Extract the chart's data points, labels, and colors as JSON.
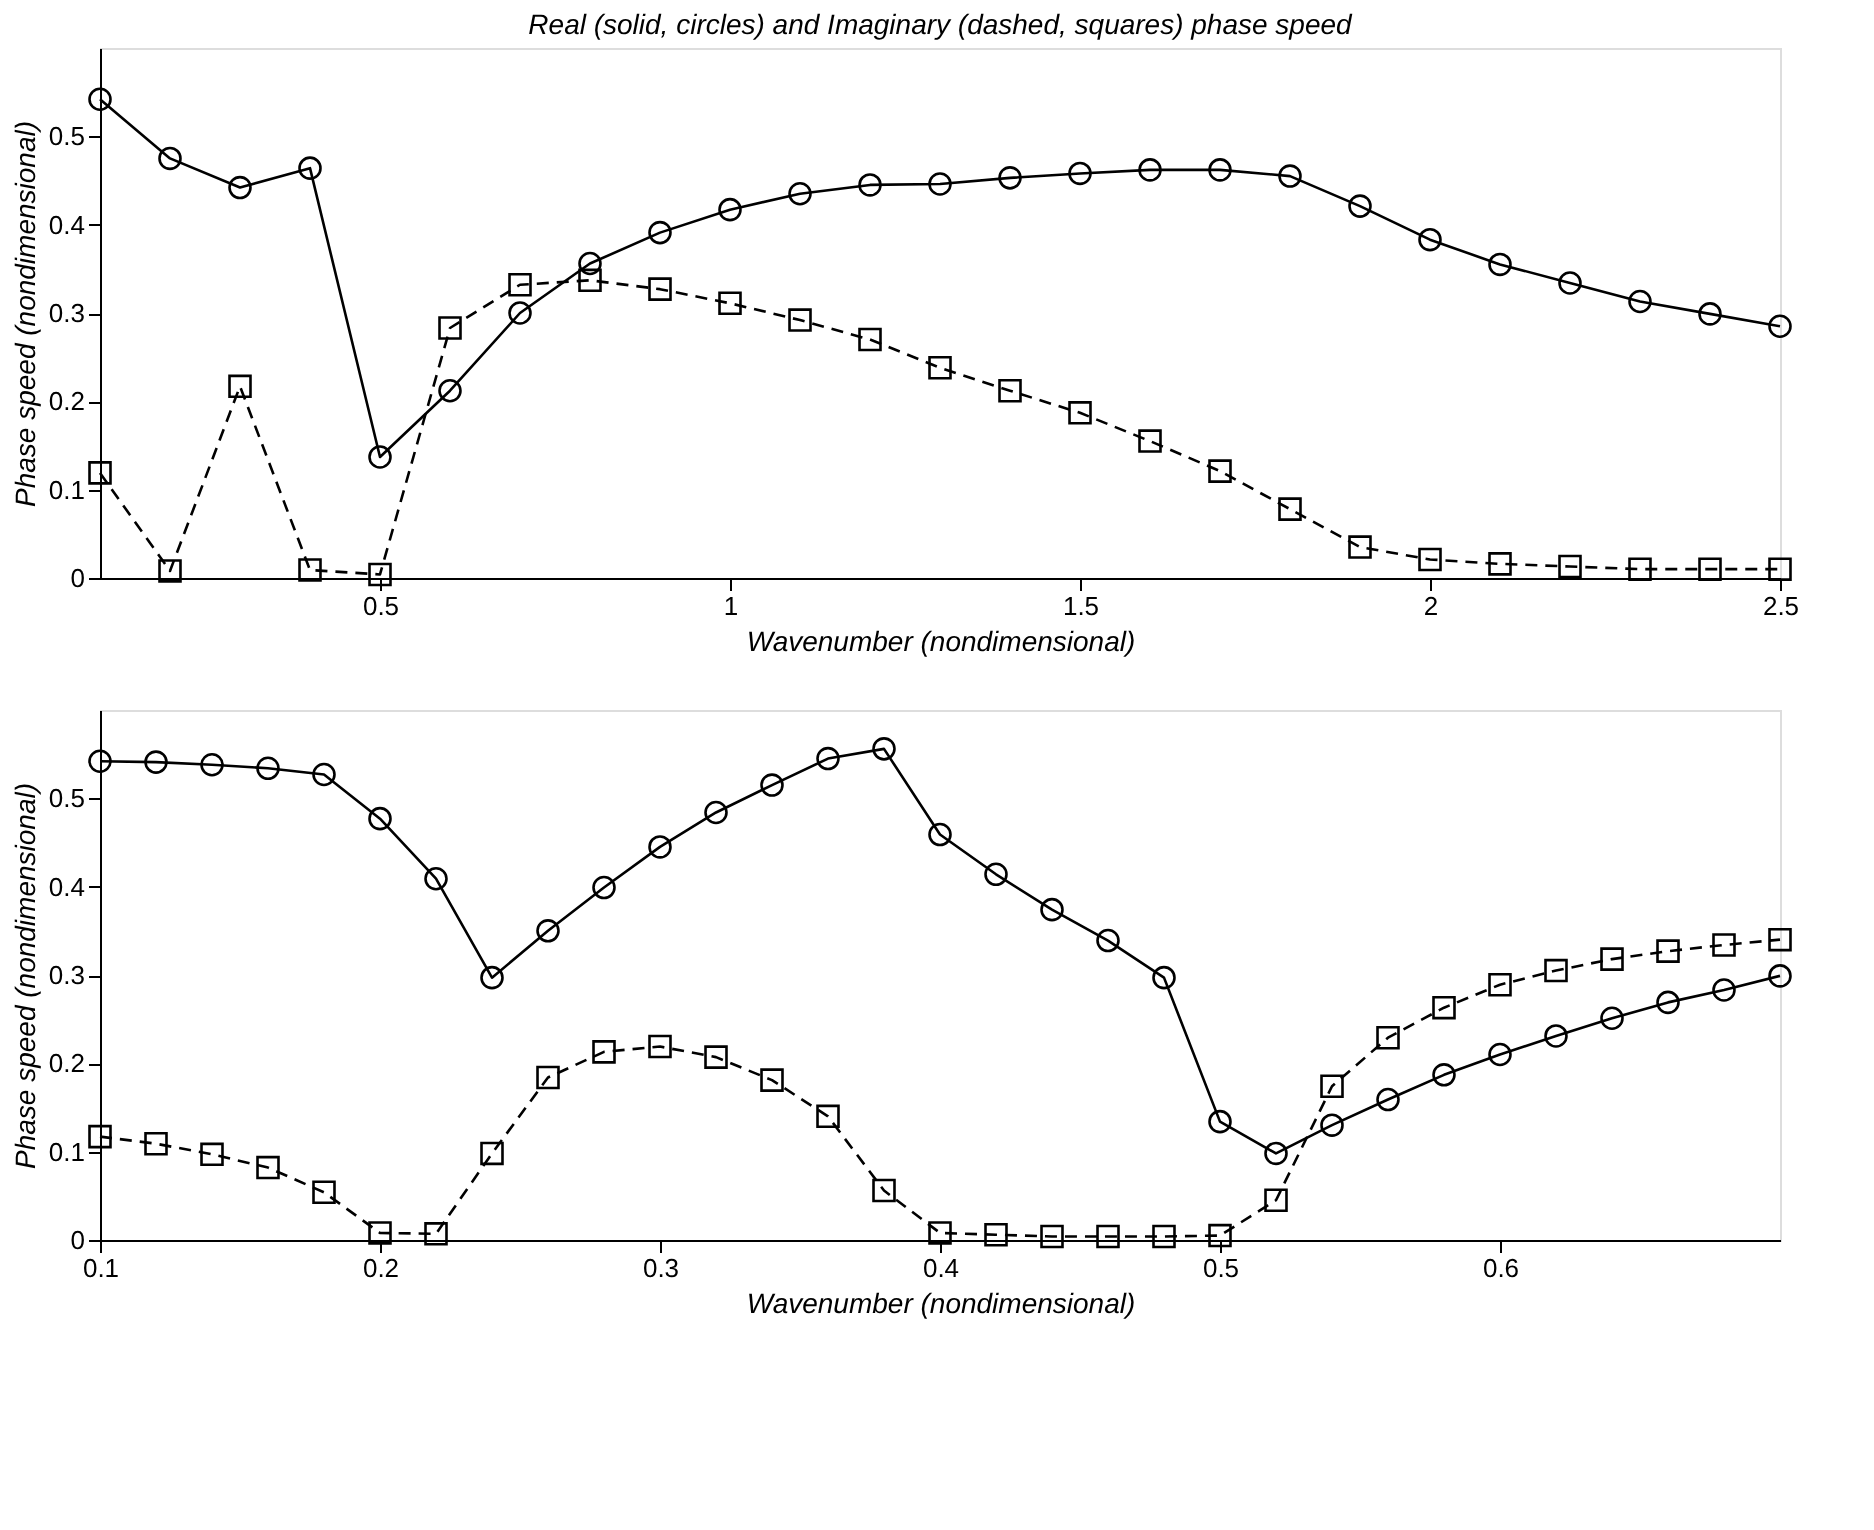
{
  "chart_data": [
    {
      "type": "line",
      "title": "Real (solid, circles) and Imaginary (dashed, squares) phase speed",
      "xlabel": "Wavenumber (nondimensional)",
      "ylabel": "Phase speed (nondimensional)",
      "x": [
        0.1,
        0.2,
        0.3,
        0.4,
        0.5,
        0.6,
        0.7,
        0.8,
        0.9,
        1.0,
        1.1,
        1.2,
        1.3,
        1.4,
        1.5,
        1.6,
        1.7,
        1.8,
        1.9,
        2.0,
        2.1,
        2.2,
        2.3,
        2.4,
        2.5
      ],
      "series": [
        {
          "color": "#000000",
          "marker": "circle",
          "line_style": "solid",
          "values": [
            0.542,
            0.475,
            0.442,
            0.464,
            0.137,
            0.212,
            0.3,
            0.356,
            0.391,
            0.417,
            0.435,
            0.445,
            0.446,
            0.453,
            0.458,
            0.462,
            0.462,
            0.455,
            0.421,
            0.383,
            0.355,
            0.334,
            0.313,
            0.299,
            0.285
          ]
        },
        {
          "color": "#000000",
          "marker": "square",
          "line_style": "dashed",
          "values": [
            0.119,
            0.008,
            0.217,
            0.009,
            0.004,
            0.283,
            0.332,
            0.337,
            0.327,
            0.311,
            0.292,
            0.27,
            0.238,
            0.212,
            0.187,
            0.155,
            0.121,
            0.078,
            0.035,
            0.021,
            0.016,
            0.013,
            0.01,
            0.01,
            0.01
          ]
        }
      ],
      "xlim": [
        0.1,
        2.5
      ],
      "xticks": [
        0.5,
        1,
        1.5,
        2,
        2.5
      ],
      "ylim": [
        0,
        0.6
      ],
      "yticks": [
        0,
        0.1,
        0.2,
        0.3,
        0.4,
        0.5
      ],
      "grid": false
    },
    {
      "type": "line",
      "xlabel": "Wavenumber (nondimensional)",
      "ylabel": "Phase speed (nondimensional)",
      "x": [
        0.1,
        0.12,
        0.14,
        0.16,
        0.18,
        0.2,
        0.22,
        0.24,
        0.26,
        0.28,
        0.3,
        0.32,
        0.34,
        0.36,
        0.38,
        0.4,
        0.42,
        0.44,
        0.46,
        0.48,
        0.5,
        0.52,
        0.54,
        0.56,
        0.58,
        0.6,
        0.62,
        0.64,
        0.66,
        0.68,
        0.7
      ],
      "series": [
        {
          "color": "#000000",
          "marker": "circle",
          "line_style": "solid",
          "values": [
            0.542,
            0.541,
            0.538,
            0.534,
            0.527,
            0.477,
            0.409,
            0.297,
            0.35,
            0.399,
            0.445,
            0.484,
            0.515,
            0.545,
            0.556,
            0.459,
            0.414,
            0.374,
            0.339,
            0.297,
            0.134,
            0.098,
            0.13,
            0.159,
            0.187,
            0.21,
            0.231,
            0.251,
            0.269,
            0.283,
            0.299
          ]
        },
        {
          "color": "#000000",
          "marker": "square",
          "line_style": "dashed",
          "values": [
            0.117,
            0.109,
            0.097,
            0.082,
            0.054,
            0.008,
            0.007,
            0.098,
            0.184,
            0.213,
            0.219,
            0.207,
            0.181,
            0.14,
            0.056,
            0.008,
            0.006,
            0.004,
            0.004,
            0.004,
            0.005,
            0.045,
            0.174,
            0.229,
            0.263,
            0.289,
            0.305,
            0.318,
            0.327,
            0.334,
            0.34
          ]
        }
      ],
      "xlim": [
        0.1,
        0.7
      ],
      "xticks": [
        0.1,
        0.2,
        0.3,
        0.4,
        0.5,
        0.6
      ],
      "ylim": [
        0,
        0.6
      ],
      "yticks": [
        0,
        0.1,
        0.2,
        0.3,
        0.4,
        0.5
      ],
      "grid": false
    }
  ]
}
